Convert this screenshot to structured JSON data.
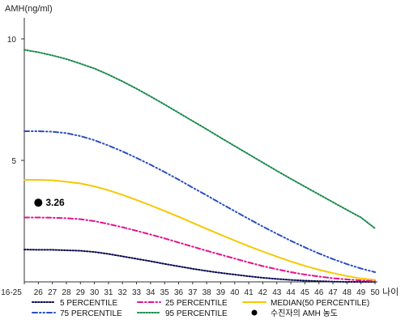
{
  "chart_data": {
    "type": "line",
    "title": "",
    "ylabel": "AMH(ng/ml)",
    "xlabel": "나이",
    "ylim": [
      0,
      11
    ],
    "yticks": [
      5,
      10
    ],
    "grid": false,
    "legend_position": "bottom",
    "categories": [
      "16-25",
      "26",
      "27",
      "28",
      "29",
      "30",
      "31",
      "32",
      "33",
      "34",
      "35",
      "36",
      "37",
      "38",
      "39",
      "40",
      "41",
      "42",
      "43",
      "44",
      "45",
      "46",
      "47",
      "48",
      "49",
      "50"
    ],
    "series": [
      {
        "name": "5 PERCENTILE",
        "color": "#0a0a50",
        "dash": "dotted",
        "values": [
          1.33,
          1.32,
          1.32,
          1.3,
          1.28,
          1.23,
          1.15,
          1.05,
          0.95,
          0.85,
          0.74,
          0.64,
          0.54,
          0.45,
          0.37,
          0.3,
          0.23,
          0.17,
          0.12,
          0.08,
          0.05,
          0.03,
          0.01,
          0.0,
          0.0,
          0.0
        ]
      },
      {
        "name": "25 PERCENTILE",
        "color": "#e0148c",
        "dash": "dashdot",
        "values": [
          2.65,
          2.65,
          2.64,
          2.62,
          2.58,
          2.5,
          2.38,
          2.25,
          2.1,
          1.95,
          1.79,
          1.62,
          1.45,
          1.28,
          1.12,
          0.96,
          0.8,
          0.65,
          0.52,
          0.4,
          0.3,
          0.22,
          0.15,
          0.1,
          0.06,
          0.03
        ]
      },
      {
        "name": "MEDIAN(50 PERCENTILE)",
        "color": "#f5c800",
        "dash": "solid",
        "values": [
          4.2,
          4.2,
          4.18,
          4.12,
          4.05,
          3.93,
          3.77,
          3.58,
          3.37,
          3.15,
          2.92,
          2.68,
          2.43,
          2.18,
          1.94,
          1.7,
          1.47,
          1.25,
          1.04,
          0.84,
          0.66,
          0.5,
          0.36,
          0.24,
          0.14,
          0.08
        ]
      },
      {
        "name": "75 PERCENTILE",
        "color": "#2b4fbf",
        "dash": "dashdotdot",
        "values": [
          6.2,
          6.2,
          6.18,
          6.12,
          6.0,
          5.83,
          5.61,
          5.37,
          5.1,
          4.82,
          4.52,
          4.21,
          3.88,
          3.56,
          3.23,
          2.91,
          2.59,
          2.28,
          1.98,
          1.69,
          1.42,
          1.17,
          0.94,
          0.73,
          0.55,
          0.4
        ]
      },
      {
        "name": "95 PERCENTILE",
        "color": "#1a8a4a",
        "dash": "dotted",
        "values": [
          9.55,
          9.45,
          9.32,
          9.17,
          8.98,
          8.78,
          8.53,
          8.25,
          7.95,
          7.63,
          7.3,
          6.96,
          6.62,
          6.28,
          5.93,
          5.59,
          5.25,
          4.91,
          4.57,
          4.24,
          3.92,
          3.6,
          3.28,
          2.96,
          2.65,
          2.2
        ]
      }
    ],
    "patient_point": {
      "label": "수진자의 AMH 농도",
      "category": "26",
      "value": 3.26,
      "value_label": "3.26"
    },
    "legend": {
      "row1": [
        "5 PERCENTILE",
        "25 PERCENTILE",
        "MEDIAN(50 PERCENTILE)"
      ],
      "row2": [
        "75 PERCENTILE",
        "95 PERCENTILE",
        "수진자의 AMH 농도"
      ]
    }
  }
}
